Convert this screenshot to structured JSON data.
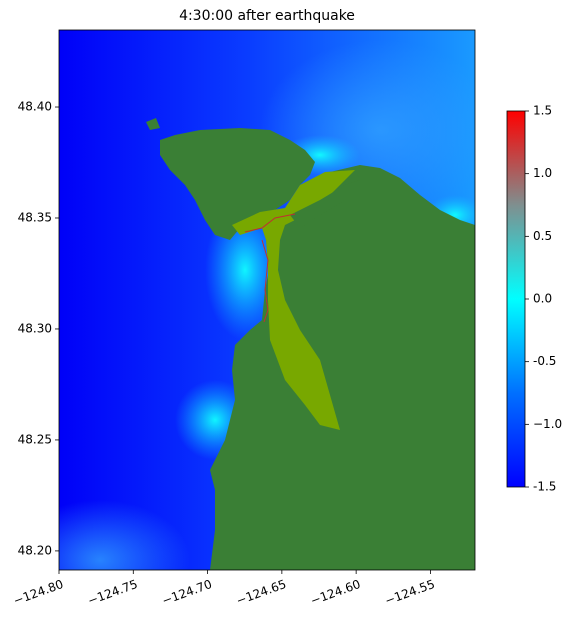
{
  "chart_data": {
    "type": "map",
    "title": "4:30:00 after earthquake",
    "xlim": [
      -124.8,
      -124.52
    ],
    "xticks": [
      {
        "value": -124.8,
        "label": "−124.80"
      },
      {
        "value": -124.75,
        "label": "−124.75"
      },
      {
        "value": -124.7,
        "label": "−124.70"
      },
      {
        "value": -124.65,
        "label": "−124.65"
      },
      {
        "value": -124.6,
        "label": "−124.60"
      },
      {
        "value": -124.55,
        "label": "−124.55"
      }
    ],
    "ylim": [
      48.1914,
      48.4347
    ],
    "yticks": [
      {
        "value": 48.2,
        "label": "48.20"
      },
      48.25,
      {
        "value": 48.3,
        "label": "48.30"
      },
      48.35,
      {
        "value": 48.4,
        "label": "48.40"
      }
    ],
    "colorbar": {
      "lim": [
        -1.5,
        1.5
      ],
      "ticks": [
        -1.5,
        {
          "value": -1.0,
          "label": "−1.0"
        },
        -0.5,
        {
          "value": 0.0,
          "label": "0.0"
        },
        0.5,
        {
          "value": 1.0,
          "label": "1.0"
        },
        1.5
      ],
      "colors": [
        "#0000ff",
        "#0070ff",
        "#00ffff",
        "#7f8f8f",
        "#ff0000"
      ]
    }
  }
}
